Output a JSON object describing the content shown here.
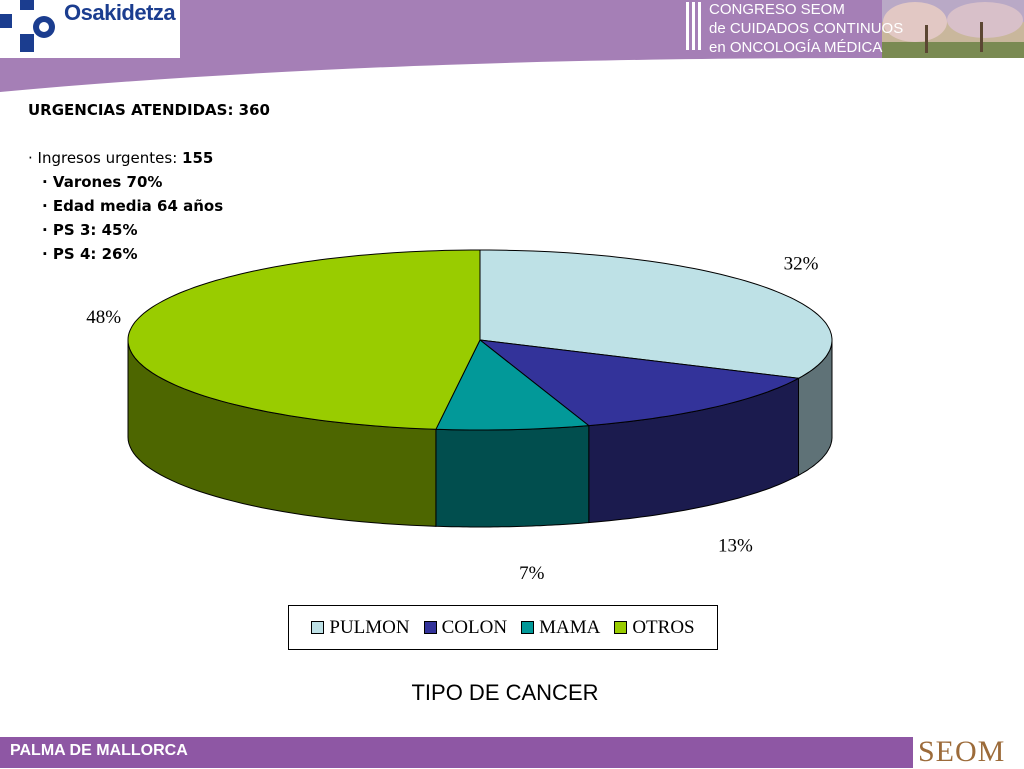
{
  "header": {
    "logo_text": "Osakidetza",
    "congress_lines": [
      "CONGRESO SEOM",
      "de CUIDADOS CONTINUOS",
      "en ONCOLOGÍA MÉDICA"
    ],
    "colors": {
      "purple": "#a57fb6",
      "navy": "#1b3d8f"
    }
  },
  "info": {
    "title": "URGENCIAS ATENDIDAS: 360",
    "ingresos_label": "· Ingresos urgentes: ",
    "ingresos_value": "155",
    "items": [
      "· Varones 70%",
      "· Edad media 64 años",
      "· PS 3: 45%",
      "· PS 4: 26%"
    ]
  },
  "chart_data": {
    "type": "pie",
    "title": "TIPO DE CANCER",
    "categories": [
      "PULMON",
      "COLON",
      "MAMA",
      "OTROS"
    ],
    "values": [
      32,
      13,
      7,
      48
    ],
    "labels": [
      "32%",
      "13%",
      "7%",
      "48%"
    ],
    "colors": [
      "#bee1e6",
      "#33339a",
      "#029999",
      "#99cc00"
    ],
    "side_colors": [
      "#5f7277",
      "#1b1b4e",
      "#014e4e",
      "#4d6600"
    ],
    "legend_position": "bottom"
  },
  "footer": {
    "text": "PALMA DE MALLORCA",
    "brand": "SEOM"
  }
}
